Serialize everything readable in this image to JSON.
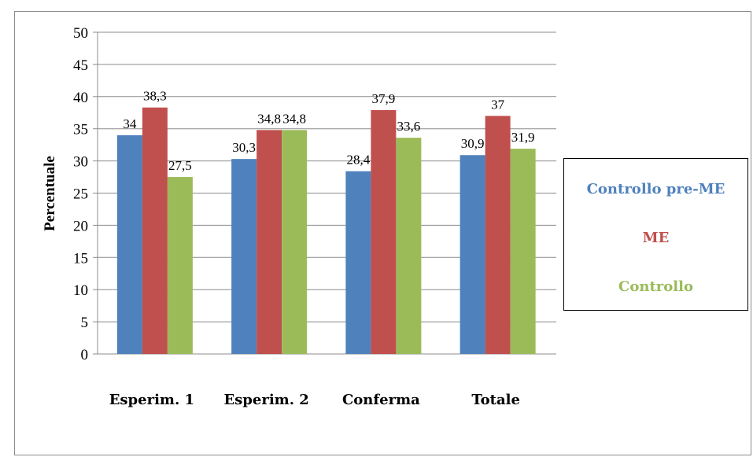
{
  "chart_data": {
    "type": "bar",
    "categories": [
      "Esperim. 1",
      "Esperim. 2",
      "Conferma",
      "Totale"
    ],
    "series": [
      {
        "name": "Controllo pre-ME",
        "color": "#4f81bd",
        "values": [
          34,
          30.3,
          28.4,
          30.9
        ],
        "labels": [
          "34",
          "30,3",
          "28,4",
          "30,9"
        ]
      },
      {
        "name": "ME",
        "color": "#c0504d",
        "values": [
          38.3,
          34.8,
          37.9,
          37
        ],
        "labels": [
          "38,3",
          "34,8",
          "37,9",
          "37"
        ]
      },
      {
        "name": "Controllo",
        "color": "#9bbb59",
        "values": [
          27.5,
          34.8,
          33.6,
          31.9
        ],
        "labels": [
          "27,5",
          "34,8",
          "33,6",
          "31,9"
        ]
      }
    ],
    "ylabel": "Percentuale",
    "xlabel": "",
    "ylim": [
      0,
      50
    ],
    "yticks": [
      0,
      5,
      10,
      15,
      20,
      25,
      30,
      35,
      40,
      45,
      50
    ],
    "grid": true,
    "legend_position": "right",
    "legend_text_colors": [
      "#4f81bd",
      "#c0504d",
      "#9bbb59"
    ]
  }
}
